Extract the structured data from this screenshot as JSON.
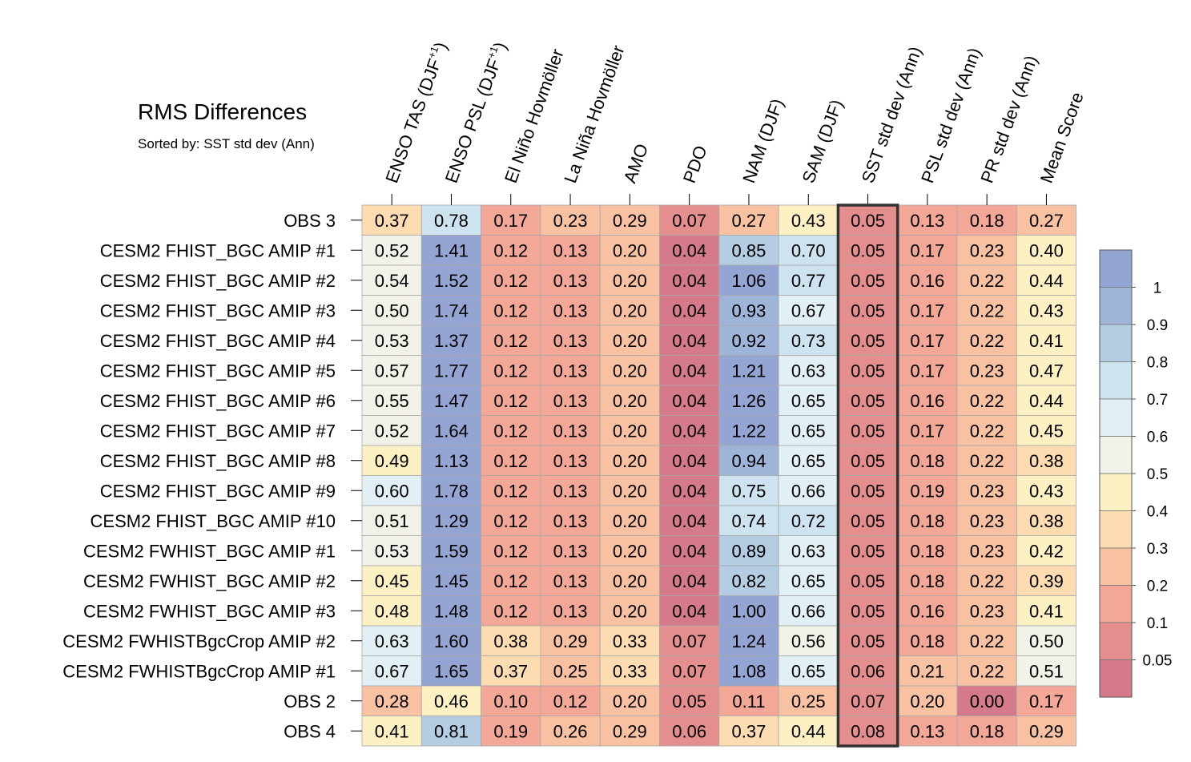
{
  "chart_data": {
    "type": "heatmap",
    "title": "RMS Differences",
    "subtitle": "Sorted by: SST std dev (Ann)",
    "highlighted_column": "SST std dev (Ann)",
    "columns": [
      "ENSO TAS (DJF+1)",
      "ENSO PSL (DJF+1)",
      "El Niño Hovmöller",
      "La Niña Hovmöller",
      "AMO",
      "PDO",
      "NAM (DJF)",
      "SAM (DJF)",
      "SST std dev (Ann)",
      "PSL std dev (Ann)",
      "PR std dev (Ann)",
      "Mean Score"
    ],
    "rows": [
      "OBS 3",
      "CESM2 FHIST_BGC AMIP #1",
      "CESM2 FHIST_BGC AMIP #2",
      "CESM2 FHIST_BGC AMIP #3",
      "CESM2 FHIST_BGC AMIP #4",
      "CESM2 FHIST_BGC AMIP #5",
      "CESM2 FHIST_BGC AMIP #6",
      "CESM2 FHIST_BGC AMIP #7",
      "CESM2 FHIST_BGC AMIP #8",
      "CESM2 FHIST_BGC AMIP #9",
      "CESM2 FHIST_BGC AMIP #10",
      "CESM2 FWHIST_BGC AMIP #1",
      "CESM2 FWHIST_BGC AMIP #2",
      "CESM2 FWHIST_BGC AMIP #3",
      "CESM2 FWHISTBgcCrop AMIP #2",
      "CESM2 FWHISTBgcCrop AMIP #1",
      "OBS 2",
      "OBS 4"
    ],
    "values": [
      [
        "0.37",
        "0.78",
        "0.17",
        "0.23",
        "0.29",
        "0.07",
        "0.27",
        "0.43",
        "0.05",
        "0.13",
        "0.18",
        "0.27"
      ],
      [
        "0.52",
        "1.41",
        "0.12",
        "0.13",
        "0.20",
        "0.04",
        "0.85",
        "0.70",
        "0.05",
        "0.17",
        "0.23",
        "0.40"
      ],
      [
        "0.54",
        "1.52",
        "0.12",
        "0.13",
        "0.20",
        "0.04",
        "1.06",
        "0.77",
        "0.05",
        "0.16",
        "0.22",
        "0.44"
      ],
      [
        "0.50",
        "1.74",
        "0.12",
        "0.13",
        "0.20",
        "0.04",
        "0.93",
        "0.67",
        "0.05",
        "0.17",
        "0.22",
        "0.43"
      ],
      [
        "0.53",
        "1.37",
        "0.12",
        "0.13",
        "0.20",
        "0.04",
        "0.92",
        "0.73",
        "0.05",
        "0.17",
        "0.22",
        "0.41"
      ],
      [
        "0.57",
        "1.77",
        "0.12",
        "0.13",
        "0.20",
        "0.04",
        "1.21",
        "0.63",
        "0.05",
        "0.17",
        "0.23",
        "0.47"
      ],
      [
        "0.55",
        "1.47",
        "0.12",
        "0.13",
        "0.20",
        "0.04",
        "1.26",
        "0.65",
        "0.05",
        "0.16",
        "0.22",
        "0.44"
      ],
      [
        "0.52",
        "1.64",
        "0.12",
        "0.13",
        "0.20",
        "0.04",
        "1.22",
        "0.65",
        "0.05",
        "0.17",
        "0.22",
        "0.45"
      ],
      [
        "0.49",
        "1.13",
        "0.12",
        "0.13",
        "0.20",
        "0.04",
        "0.94",
        "0.65",
        "0.05",
        "0.18",
        "0.22",
        "0.38"
      ],
      [
        "0.60",
        "1.78",
        "0.12",
        "0.13",
        "0.20",
        "0.04",
        "0.75",
        "0.66",
        "0.05",
        "0.19",
        "0.23",
        "0.43"
      ],
      [
        "0.51",
        "1.29",
        "0.12",
        "0.13",
        "0.20",
        "0.04",
        "0.74",
        "0.72",
        "0.05",
        "0.18",
        "0.23",
        "0.38"
      ],
      [
        "0.53",
        "1.59",
        "0.12",
        "0.13",
        "0.20",
        "0.04",
        "0.89",
        "0.63",
        "0.05",
        "0.18",
        "0.23",
        "0.42"
      ],
      [
        "0.45",
        "1.45",
        "0.12",
        "0.13",
        "0.20",
        "0.04",
        "0.82",
        "0.65",
        "0.05",
        "0.18",
        "0.22",
        "0.39"
      ],
      [
        "0.48",
        "1.48",
        "0.12",
        "0.13",
        "0.20",
        "0.04",
        "1.00",
        "0.66",
        "0.05",
        "0.16",
        "0.23",
        "0.41"
      ],
      [
        "0.63",
        "1.60",
        "0.38",
        "0.29",
        "0.33",
        "0.07",
        "1.24",
        "0.56",
        "0.05",
        "0.18",
        "0.22",
        "0.50"
      ],
      [
        "0.67",
        "1.65",
        "0.37",
        "0.25",
        "0.33",
        "0.07",
        "1.08",
        "0.65",
        "0.06",
        "0.21",
        "0.22",
        "0.51"
      ],
      [
        "0.28",
        "0.46",
        "0.10",
        "0.12",
        "0.20",
        "0.05",
        "0.11",
        "0.25",
        "0.07",
        "0.20",
        "0.00",
        "0.17"
      ],
      [
        "0.41",
        "0.81",
        "0.19",
        "0.26",
        "0.29",
        "0.06",
        "0.37",
        "0.44",
        "0.08",
        "0.13",
        "0.18",
        "0.29"
      ]
    ],
    "colorbar": {
      "labels": [
        "1",
        "0.9",
        "0.8",
        "0.7",
        "0.6",
        "0.5",
        "0.4",
        "0.3",
        "0.2",
        "0.1",
        "0.05"
      ],
      "bounds": [
        0.05,
        0.1,
        0.2,
        0.3,
        0.4,
        0.5,
        0.6,
        0.7,
        0.8,
        0.9,
        1.0
      ],
      "colors": [
        "#d47a8a",
        "#e48f8d",
        "#f2a797",
        "#f8c2a2",
        "#fcdcb0",
        "#fdf0c3",
        "#f2f2e8",
        "#e2eff5",
        "#cde3ef",
        "#b4cde3",
        "#9fb4d9",
        "#94a5d3"
      ]
    }
  }
}
